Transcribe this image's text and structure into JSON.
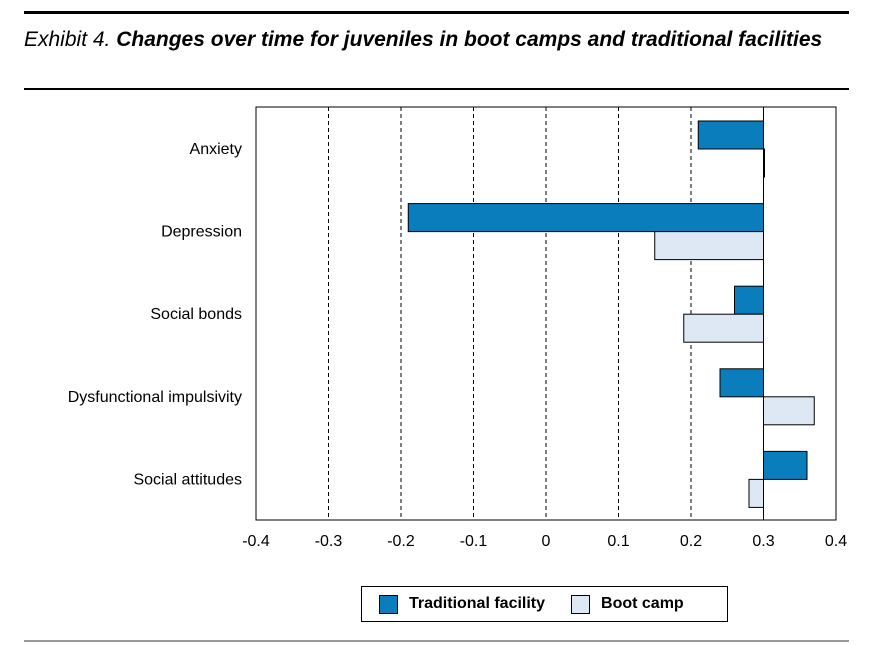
{
  "header": {
    "exhibit_label": "Exhibit 4.",
    "title": "Changes over time for juveniles in boot camps and traditional facilities"
  },
  "chart_data": {
    "type": "bar",
    "orientation": "horizontal",
    "categories": [
      "Anxiety",
      "Depression",
      "Social bonds",
      "Dysfunctional impulsivity",
      "Social attitudes"
    ],
    "baseline": 0.3,
    "series": [
      {
        "name": "Traditional facility",
        "color": "#0a7dbd",
        "values": [
          0.21,
          -0.19,
          0.26,
          0.24,
          0.36
        ]
      },
      {
        "name": "Boot camp",
        "color": "#dde8f4",
        "values": [
          0.3,
          0.15,
          0.19,
          0.37,
          0.28
        ]
      }
    ],
    "xlim": [
      -0.4,
      0.4
    ],
    "xticks": [
      "-0.4",
      "-0.3",
      "-0.2",
      "-0.1",
      "0",
      "0.1",
      "0.2",
      "0.3",
      "0.4"
    ],
    "xtick_values": [
      -0.4,
      -0.3,
      -0.2,
      -0.1,
      0,
      0.1,
      0.2,
      0.3,
      0.4
    ],
    "grid": "vertical dashed",
    "legend": "bottom"
  }
}
